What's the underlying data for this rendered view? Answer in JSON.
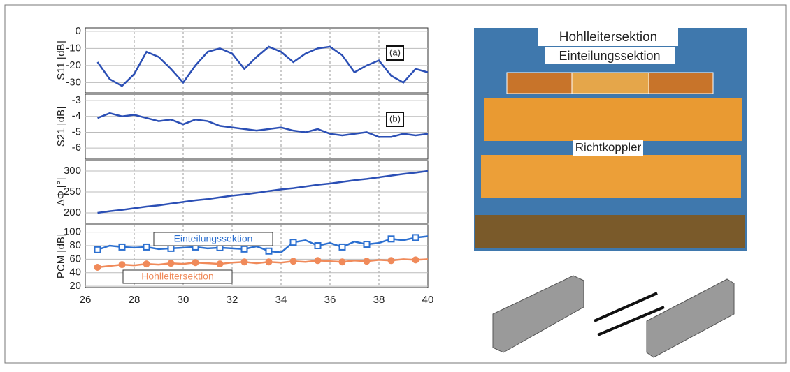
{
  "chart_data": [
    {
      "type": "line",
      "ylabel": "S11 [dB]",
      "panel_tag": "(a)",
      "xlim": [
        26,
        40
      ],
      "ylim": [
        -36,
        2
      ],
      "yticks": [
        0,
        -10,
        -20,
        -30
      ],
      "x": [
        26.5,
        27,
        27.5,
        28,
        28.5,
        29,
        29.5,
        30,
        30.5,
        31,
        31.5,
        32,
        32.5,
        33,
        33.5,
        34,
        34.5,
        35,
        35.5,
        36,
        36.5,
        37,
        37.5,
        38,
        38.5,
        39,
        39.5,
        40
      ],
      "series": [
        {
          "color": "#2b4fb5",
          "values": [
            -18,
            -28,
            -32,
            -25,
            -12,
            -15,
            -22,
            -30,
            -20,
            -12,
            -10,
            -13,
            -22,
            -15,
            -9,
            -12,
            -18,
            -13,
            -10,
            -9,
            -14,
            -24,
            -20,
            -17,
            -26,
            -30,
            -22,
            -24
          ]
        }
      ]
    },
    {
      "type": "line",
      "ylabel": "S21 [dB]",
      "panel_tag": "(b)",
      "xlim": [
        26,
        40
      ],
      "ylim": [
        -6.7,
        -2.6
      ],
      "yticks": [
        -3,
        -4,
        -5,
        -6
      ],
      "x": [
        26.5,
        27,
        27.5,
        28,
        28.5,
        29,
        29.5,
        30,
        30.5,
        31,
        31.5,
        32,
        32.5,
        33,
        33.5,
        34,
        34.5,
        35,
        35.5,
        36,
        36.5,
        37,
        37.5,
        38,
        38.5,
        39,
        39.5,
        40
      ],
      "series": [
        {
          "color": "#2b4fb5",
          "values": [
            -4.1,
            -3.8,
            -4.0,
            -3.9,
            -4.1,
            -4.3,
            -4.2,
            -4.5,
            -4.2,
            -4.3,
            -4.6,
            -4.7,
            -4.8,
            -4.9,
            -4.8,
            -4.7,
            -4.9,
            -5.0,
            -4.8,
            -5.1,
            -5.2,
            -5.1,
            -5.0,
            -5.3,
            -5.3,
            -5.1,
            -5.2,
            -5.1
          ]
        }
      ]
    },
    {
      "type": "line",
      "ylabel": "ΔΦ [°]",
      "xlim": [
        26,
        40
      ],
      "ylim": [
        175,
        325
      ],
      "yticks": [
        200,
        250,
        300
      ],
      "x": [
        26.5,
        27,
        27.5,
        28,
        28.5,
        29,
        29.5,
        30,
        30.5,
        31,
        31.5,
        32,
        32.5,
        33,
        33.5,
        34,
        34.5,
        35,
        35.5,
        36,
        36.5,
        37,
        37.5,
        38,
        38.5,
        39,
        39.5,
        40
      ],
      "series": [
        {
          "color": "#2b4fb5",
          "values": [
            200,
            204,
            207,
            211,
            215,
            218,
            222,
            226,
            230,
            233,
            237,
            241,
            244,
            248,
            252,
            256,
            259,
            263,
            267,
            270,
            274,
            278,
            281,
            285,
            289,
            293,
            296,
            300
          ]
        }
      ]
    },
    {
      "type": "line",
      "ylabel": "PCM [dB]",
      "xlim": [
        26,
        40
      ],
      "ylim": [
        18,
        111
      ],
      "yticks": [
        100,
        80,
        60,
        40,
        20
      ],
      "xticks": [
        26,
        28,
        30,
        32,
        34,
        36,
        38,
        40
      ],
      "x": [
        26.5,
        27,
        27.5,
        28,
        28.5,
        29,
        29.5,
        30,
        30.5,
        31,
        31.5,
        32,
        32.5,
        33,
        33.5,
        34,
        34.5,
        35,
        35.5,
        36,
        36.5,
        37,
        37.5,
        38,
        38.5,
        39,
        39.5,
        40
      ],
      "series": [
        {
          "name": "Einteilungssektion",
          "color": "#2b6fd0",
          "marker": "square",
          "values": [
            74,
            80,
            78,
            77,
            78,
            75,
            76,
            77,
            78,
            76,
            77,
            76,
            75,
            79,
            72,
            70,
            85,
            88,
            80,
            84,
            78,
            86,
            82,
            84,
            90,
            88,
            92,
            94
          ]
        },
        {
          "name": "Hohlleitersektion",
          "color": "#f08a5a",
          "marker": "circle",
          "values": [
            48,
            50,
            52,
            51,
            53,
            52,
            54,
            53,
            55,
            54,
            53,
            55,
            56,
            54,
            56,
            55,
            57,
            56,
            58,
            57,
            56,
            58,
            57,
            59,
            58,
            60,
            59,
            60
          ]
        }
      ]
    }
  ],
  "photo": {
    "labels": [
      "Hohlleitersektion",
      "Einteilungssektion",
      "Richtkoppler"
    ]
  }
}
